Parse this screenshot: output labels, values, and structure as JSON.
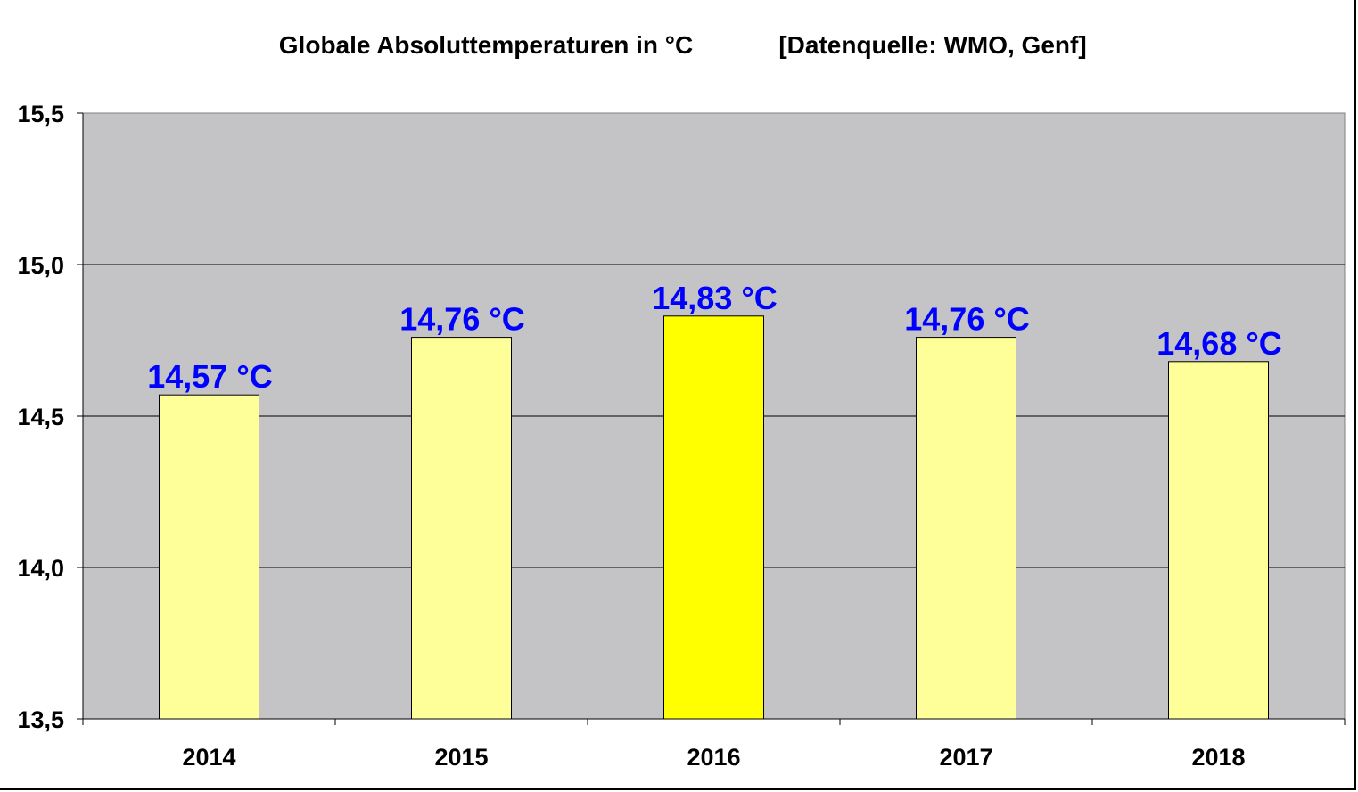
{
  "chart_data": {
    "type": "bar",
    "title": "Globale Absoluttemperaturen in °C",
    "subtitle": "[Datenquelle: WMO, Genf]",
    "xlabel": "",
    "ylabel": "",
    "categories": [
      "2014",
      "2015",
      "2016",
      "2017",
      "2018"
    ],
    "values": [
      14.57,
      14.76,
      14.83,
      14.76,
      14.68
    ],
    "data_labels": [
      "14,57 °C",
      "14,76 °C",
      "14,83 °C",
      "14,76 °C",
      "14,68 °C"
    ],
    "ylim": [
      13.5,
      15.5
    ],
    "yticks": [
      13.5,
      14.0,
      14.5,
      15.0,
      15.5
    ],
    "ytick_labels": [
      "13,5",
      "14,0",
      "14,5",
      "15,0",
      "15,5"
    ],
    "grid": true,
    "highlight_index": 2,
    "colors": {
      "bar": "#FFFF99",
      "bar_highlight": "#FFFF00",
      "plot_bg": "#C4C3C6",
      "label": "#0000FF"
    }
  }
}
